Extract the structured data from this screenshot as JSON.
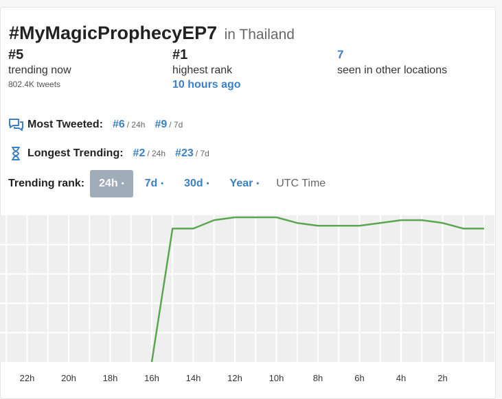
{
  "header": {
    "hashtag": "#MyMagicProphecyEP7",
    "location": "in Thailand"
  },
  "stats": {
    "current": {
      "rank": "#5",
      "label": "trending now",
      "tweets": "802.4K tweets"
    },
    "highest": {
      "rank": "#1",
      "label": "highest rank",
      "when": "10 hours ago"
    },
    "other": {
      "count": "7",
      "label": "seen in other locations"
    }
  },
  "most_tweeted": {
    "label": "Most Tweeted:",
    "items": [
      {
        "rank": "#6",
        "period": "/ 24h"
      },
      {
        "rank": "#9",
        "period": "/ 7d"
      }
    ]
  },
  "longest_trending": {
    "label": "Longest Trending:",
    "items": [
      {
        "rank": "#2",
        "period": "/ 24h"
      },
      {
        "rank": "#23",
        "period": "/ 7d"
      }
    ]
  },
  "trending_rank": {
    "label": "Trending rank:",
    "options": [
      "24h",
      "7d",
      "30d",
      "Year"
    ],
    "selected": "24h",
    "dot": "•",
    "utc_label": "UTC Time"
  },
  "colors": {
    "accent": "#3b7fc4",
    "line": "#5aa550",
    "chart_bg": "#efefef",
    "active_btn": "#a0acb8"
  },
  "icons": {
    "most_tweeted": "chat-bubbles-icon",
    "longest_trending": "hourglass-icon"
  },
  "chart_data": {
    "type": "line",
    "x": [
      "22h",
      "20h",
      "18h",
      "16h",
      "14h",
      "12h",
      "10h",
      "8h",
      "6h",
      "4h",
      "2h"
    ],
    "series": [
      {
        "hours_ago": [
          16,
          15,
          14,
          13,
          12,
          11,
          10,
          9,
          8,
          7,
          6,
          5,
          4,
          3,
          2,
          1,
          0
        ],
        "rank": [
          50,
          5,
          5,
          2,
          1,
          1,
          1,
          3,
          4,
          4,
          4,
          3,
          2,
          2,
          3,
          5,
          5
        ]
      }
    ],
    "ylim": [
      1,
      50
    ],
    "y_inverted": true,
    "grid": true
  }
}
